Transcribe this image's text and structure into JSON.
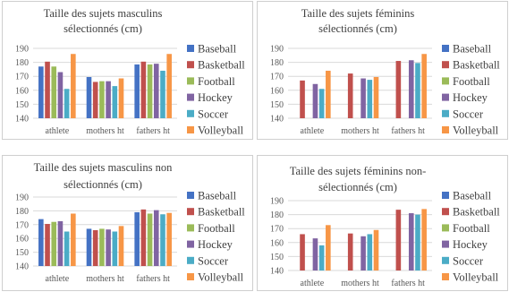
{
  "legend_labels": [
    "Baseball",
    "Basketball",
    "Football",
    "Hockey",
    "Soccer",
    "Volleyball"
  ],
  "colors": [
    "#4472C4",
    "#C0504D",
    "#9BBB59",
    "#8064A2",
    "#4BACC6",
    "#F79646"
  ],
  "chart_data": [
    {
      "type": "bar",
      "title": "Taille des sujets masculins sélectionnés (cm)",
      "title_lines": [
        "Taille des sujets masculins",
        "sélectionnés (cm)"
      ],
      "categories": [
        "athlete",
        "mothers ht",
        "fathers ht"
      ],
      "yticks": [
        "140",
        "150",
        "160",
        "170",
        "180",
        "190"
      ],
      "ylim": [
        140,
        190
      ],
      "grid": true,
      "legend": "right",
      "series": [
        {
          "name": "Baseball",
          "values": [
            177,
            169.5,
            178.5
          ]
        },
        {
          "name": "Basketball",
          "values": [
            180.5,
            166,
            180.5
          ]
        },
        {
          "name": "Football",
          "values": [
            177,
            166.5,
            178.5
          ]
        },
        {
          "name": "Hockey",
          "values": [
            173,
            166.5,
            179
          ]
        },
        {
          "name": "Soccer",
          "values": [
            161,
            163,
            174
          ]
        },
        {
          "name": "Volleyball",
          "values": [
            186,
            168.5,
            186
          ]
        }
      ]
    },
    {
      "type": "bar",
      "title": "Taille des sujets féminins sélectionnés (cm)",
      "title_lines": [
        "Taille des sujets féminins",
        "sélectionnés (cm)"
      ],
      "categories": [
        "athlete",
        "mothers ht",
        "fathers ht"
      ],
      "yticks": [
        "140",
        "150",
        "160",
        "170",
        "180",
        "190"
      ],
      "ylim": [
        140,
        190
      ],
      "grid": true,
      "legend": "right",
      "series": [
        {
          "name": "Baseball",
          "values": [
            null,
            null,
            null
          ]
        },
        {
          "name": "Basketball",
          "values": [
            167,
            172,
            181
          ]
        },
        {
          "name": "Football",
          "values": [
            null,
            null,
            null
          ]
        },
        {
          "name": "Hockey",
          "values": [
            164.5,
            168.5,
            181.5
          ]
        },
        {
          "name": "Soccer",
          "values": [
            161,
            167.5,
            179.5
          ]
        },
        {
          "name": "Volleyball",
          "values": [
            174,
            169.5,
            186
          ]
        }
      ]
    },
    {
      "type": "bar",
      "title": "Taille des sujets masculins non sélectionnés (cm)",
      "title_lines": [
        "Taille des sujets masculins non",
        "sélectionnés (cm)"
      ],
      "categories": [
        "athlete",
        "mothers ht",
        "fathers ht"
      ],
      "yticks": [
        "140",
        "150",
        "160",
        "170",
        "180",
        "190"
      ],
      "ylim": [
        140,
        190
      ],
      "grid": true,
      "legend": "right",
      "series": [
        {
          "name": "Baseball",
          "values": [
            174,
            167,
            179
          ]
        },
        {
          "name": "Basketball",
          "values": [
            170.5,
            166,
            181
          ]
        },
        {
          "name": "Football",
          "values": [
            172,
            167,
            178
          ]
        },
        {
          "name": "Hockey",
          "values": [
            172.5,
            166.5,
            180.5
          ]
        },
        {
          "name": "Soccer",
          "values": [
            165,
            165,
            177.5
          ]
        },
        {
          "name": "Volleyball",
          "values": [
            178,
            169,
            178.5
          ]
        }
      ]
    },
    {
      "type": "bar",
      "title": "Taille des sujets féminins non-sélectionnés (cm)",
      "title_lines": [
        "Taille des sujets féminins non-",
        "sélectionnés  (cm)"
      ],
      "categories": [
        "athlete",
        "mothers ht",
        "fathers ht"
      ],
      "yticks": [
        "140",
        "150",
        "160",
        "170",
        "180",
        "190"
      ],
      "ylim": [
        140,
        190
      ],
      "grid": true,
      "legend": "right",
      "series": [
        {
          "name": "Baseball",
          "values": [
            null,
            null,
            null
          ]
        },
        {
          "name": "Basketball",
          "values": [
            166,
            166.5,
            183.5
          ]
        },
        {
          "name": "Football",
          "values": [
            null,
            null,
            null
          ]
        },
        {
          "name": "Hockey",
          "values": [
            163,
            164.5,
            181
          ]
        },
        {
          "name": "Soccer",
          "values": [
            158,
            166,
            180
          ]
        },
        {
          "name": "Volleyball",
          "values": [
            172.5,
            169,
            184
          ]
        }
      ]
    }
  ]
}
